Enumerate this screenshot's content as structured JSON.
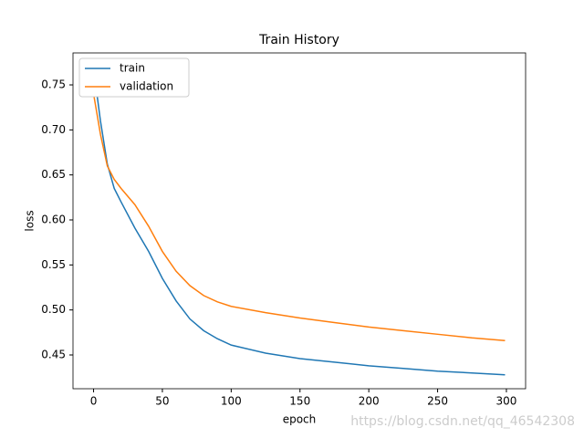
{
  "chart_data": {
    "type": "line",
    "title": "Train History",
    "x_label": "epoch",
    "y_label": "loss",
    "x": [
      0,
      5,
      10,
      15,
      20,
      30,
      40,
      50,
      60,
      70,
      80,
      90,
      100,
      125,
      150,
      175,
      200,
      225,
      250,
      275,
      299
    ],
    "series": [
      {
        "name": "train",
        "color": "#1f77b4",
        "values": [
          0.768,
          0.71,
          0.662,
          0.635,
          0.62,
          0.591,
          0.565,
          0.535,
          0.51,
          0.49,
          0.477,
          0.468,
          0.461,
          0.452,
          0.446,
          0.442,
          0.438,
          0.435,
          0.432,
          0.43,
          0.428
        ]
      },
      {
        "name": "validation",
        "color": "#ff7f0e",
        "values": [
          0.74,
          0.695,
          0.66,
          0.645,
          0.635,
          0.617,
          0.593,
          0.565,
          0.543,
          0.527,
          0.516,
          0.509,
          0.504,
          0.497,
          0.491,
          0.486,
          0.481,
          0.477,
          0.473,
          0.469,
          0.466
        ]
      }
    ],
    "xlim": [
      -14.95,
      313.95
    ],
    "xticks": [
      0,
      50,
      100,
      150,
      200,
      250,
      300
    ],
    "ylim": [
      0.4125,
      0.7855
    ],
    "yticks": [
      0.45,
      {
        "value": 0.5,
        "label": "0.50"
      },
      0.55,
      {
        "value": 0.6,
        "label": "0.60"
      },
      0.65,
      {
        "value": 0.7,
        "label": "0.70"
      },
      0.75
    ],
    "legend": "upper left",
    "watermark": "https://blog.csdn.net/qq_46542308"
  }
}
